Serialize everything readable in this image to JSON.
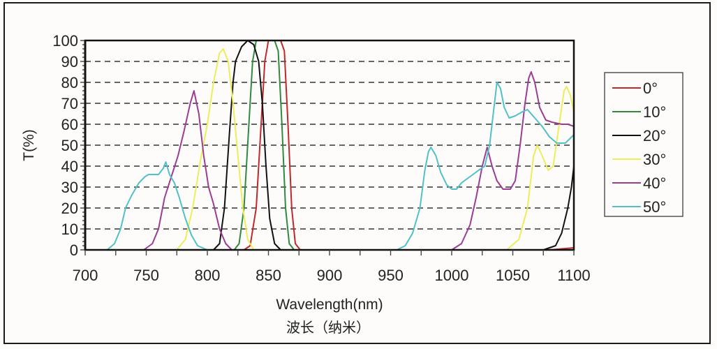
{
  "chart_data": {
    "type": "line",
    "title": "",
    "xlabel": "Wavelength(nm)",
    "xlabel_cn": "波长（纳米）",
    "ylabel": "T(%)",
    "xlim": [
      700,
      1100
    ],
    "ylim": [
      0,
      100
    ],
    "x_ticks": [
      700,
      750,
      800,
      850,
      900,
      950,
      1000,
      1050,
      1100
    ],
    "y_ticks": [
      0,
      10,
      20,
      30,
      40,
      50,
      60,
      70,
      80,
      90,
      100
    ],
    "grid": "horizontal dashed",
    "legend_position": "right",
    "series": [
      {
        "name": "0°",
        "color": "#c0282a",
        "points": [
          [
            700,
            0
          ],
          [
            830,
            0
          ],
          [
            835,
            2
          ],
          [
            840,
            20
          ],
          [
            844,
            60
          ],
          [
            847,
            90
          ],
          [
            850,
            100
          ],
          [
            860,
            100
          ],
          [
            863,
            95
          ],
          [
            866,
            60
          ],
          [
            869,
            20
          ],
          [
            872,
            3
          ],
          [
            876,
            0
          ],
          [
            1080,
            0
          ],
          [
            1100,
            1
          ]
        ]
      },
      {
        "name": "10°",
        "color": "#2e8b3e",
        "points": [
          [
            700,
            0
          ],
          [
            822,
            0
          ],
          [
            826,
            3
          ],
          [
            830,
            20
          ],
          [
            834,
            60
          ],
          [
            837,
            90
          ],
          [
            840,
            100
          ],
          [
            855,
            100
          ],
          [
            858,
            95
          ],
          [
            861,
            60
          ],
          [
            864,
            20
          ],
          [
            867,
            3
          ],
          [
            871,
            0
          ],
          [
            1100,
            0
          ]
        ]
      },
      {
        "name": "20°",
        "color": "#111111",
        "points": [
          [
            700,
            0
          ],
          [
            805,
            0
          ],
          [
            810,
            3
          ],
          [
            814,
            20
          ],
          [
            818,
            55
          ],
          [
            821,
            80
          ],
          [
            823,
            90
          ],
          [
            828,
            97
          ],
          [
            833,
            100
          ],
          [
            838,
            98
          ],
          [
            842,
            90
          ],
          [
            845,
            70
          ],
          [
            848,
            40
          ],
          [
            851,
            15
          ],
          [
            855,
            3
          ],
          [
            860,
            0
          ],
          [
            1075,
            0
          ],
          [
            1085,
            2
          ],
          [
            1090,
            8
          ],
          [
            1095,
            20
          ],
          [
            1098,
            30
          ],
          [
            1100,
            40
          ]
        ]
      },
      {
        "name": "30°",
        "color": "#eded5a",
        "points": [
          [
            700,
            0
          ],
          [
            775,
            0
          ],
          [
            782,
            5
          ],
          [
            788,
            20
          ],
          [
            795,
            45
          ],
          [
            800,
            60
          ],
          [
            805,
            80
          ],
          [
            810,
            94
          ],
          [
            813,
            96
          ],
          [
            817,
            90
          ],
          [
            821,
            70
          ],
          [
            825,
            45
          ],
          [
            829,
            20
          ],
          [
            833,
            5
          ],
          [
            838,
            0
          ],
          [
            1045,
            0
          ],
          [
            1055,
            5
          ],
          [
            1062,
            20
          ],
          [
            1067,
            45
          ],
          [
            1070,
            50
          ],
          [
            1074,
            45
          ],
          [
            1079,
            38
          ],
          [
            1083,
            40
          ],
          [
            1088,
            60
          ],
          [
            1092,
            76
          ],
          [
            1094,
            78
          ],
          [
            1097,
            74
          ],
          [
            1100,
            66
          ]
        ]
      },
      {
        "name": "40°",
        "color": "#9b3c96",
        "points": [
          [
            700,
            0
          ],
          [
            748,
            0
          ],
          [
            755,
            3
          ],
          [
            760,
            10
          ],
          [
            765,
            25
          ],
          [
            770,
            34
          ],
          [
            776,
            45
          ],
          [
            781,
            57
          ],
          [
            786,
            70
          ],
          [
            789,
            76
          ],
          [
            793,
            65
          ],
          [
            797,
            45
          ],
          [
            801,
            30
          ],
          [
            805,
            22
          ],
          [
            810,
            10
          ],
          [
            815,
            3
          ],
          [
            820,
            0
          ],
          [
            1000,
            0
          ],
          [
            1008,
            3
          ],
          [
            1015,
            12
          ],
          [
            1020,
            25
          ],
          [
            1025,
            40
          ],
          [
            1029,
            49
          ],
          [
            1033,
            40
          ],
          [
            1037,
            33
          ],
          [
            1042,
            29
          ],
          [
            1048,
            29
          ],
          [
            1052,
            33
          ],
          [
            1056,
            50
          ],
          [
            1060,
            70
          ],
          [
            1063,
            82
          ],
          [
            1065,
            85
          ],
          [
            1068,
            80
          ],
          [
            1072,
            68
          ],
          [
            1077,
            62
          ],
          [
            1082,
            61
          ],
          [
            1090,
            60
          ],
          [
            1095,
            60
          ],
          [
            1100,
            59
          ]
        ]
      },
      {
        "name": "50°",
        "color": "#4fc1c7",
        "points": [
          [
            700,
            0
          ],
          [
            718,
            0
          ],
          [
            724,
            3
          ],
          [
            729,
            10
          ],
          [
            733,
            20
          ],
          [
            738,
            26
          ],
          [
            744,
            32
          ],
          [
            749,
            35
          ],
          [
            752,
            36
          ],
          [
            760,
            36
          ],
          [
            764,
            39
          ],
          [
            766,
            42
          ],
          [
            769,
            36
          ],
          [
            773,
            32
          ],
          [
            777,
            25
          ],
          [
            782,
            15
          ],
          [
            787,
            7
          ],
          [
            792,
            2
          ],
          [
            800,
            0
          ],
          [
            955,
            0
          ],
          [
            962,
            2
          ],
          [
            968,
            8
          ],
          [
            974,
            20
          ],
          [
            978,
            38
          ],
          [
            981,
            47
          ],
          [
            983,
            49
          ],
          [
            987,
            45
          ],
          [
            991,
            37
          ],
          [
            996,
            31
          ],
          [
            1000,
            29
          ],
          [
            1004,
            29
          ],
          [
            1008,
            32
          ],
          [
            1015,
            35
          ],
          [
            1022,
            38
          ],
          [
            1027,
            40
          ],
          [
            1031,
            50
          ],
          [
            1034,
            65
          ],
          [
            1037,
            80
          ],
          [
            1040,
            77
          ],
          [
            1043,
            68
          ],
          [
            1047,
            63
          ],
          [
            1052,
            64
          ],
          [
            1058,
            66
          ],
          [
            1062,
            67
          ],
          [
            1068,
            63
          ],
          [
            1074,
            59
          ],
          [
            1080,
            54
          ],
          [
            1086,
            51
          ],
          [
            1093,
            51
          ],
          [
            1100,
            55
          ]
        ]
      }
    ]
  },
  "axes": {
    "ylabel": "T(%)",
    "xlabel": "Wavelength(nm)",
    "xlabel_cn": "波长（纳米）",
    "x_tick_labels": [
      "700",
      "750",
      "800",
      "850",
      "900",
      "950",
      "1000",
      "1050",
      "1100"
    ],
    "y_tick_labels": [
      "0",
      "10",
      "20",
      "30",
      "40",
      "50",
      "60",
      "70",
      "80",
      "90",
      "100"
    ]
  },
  "legend": {
    "items": [
      {
        "label": "0°",
        "color": "#c0282a"
      },
      {
        "label": "10°",
        "color": "#2e8b3e"
      },
      {
        "label": "20°",
        "color": "#111111"
      },
      {
        "label": "30°",
        "color": "#eded5a"
      },
      {
        "label": "40°",
        "color": "#9b3c96"
      },
      {
        "label": "50°",
        "color": "#4fc1c7"
      }
    ]
  }
}
